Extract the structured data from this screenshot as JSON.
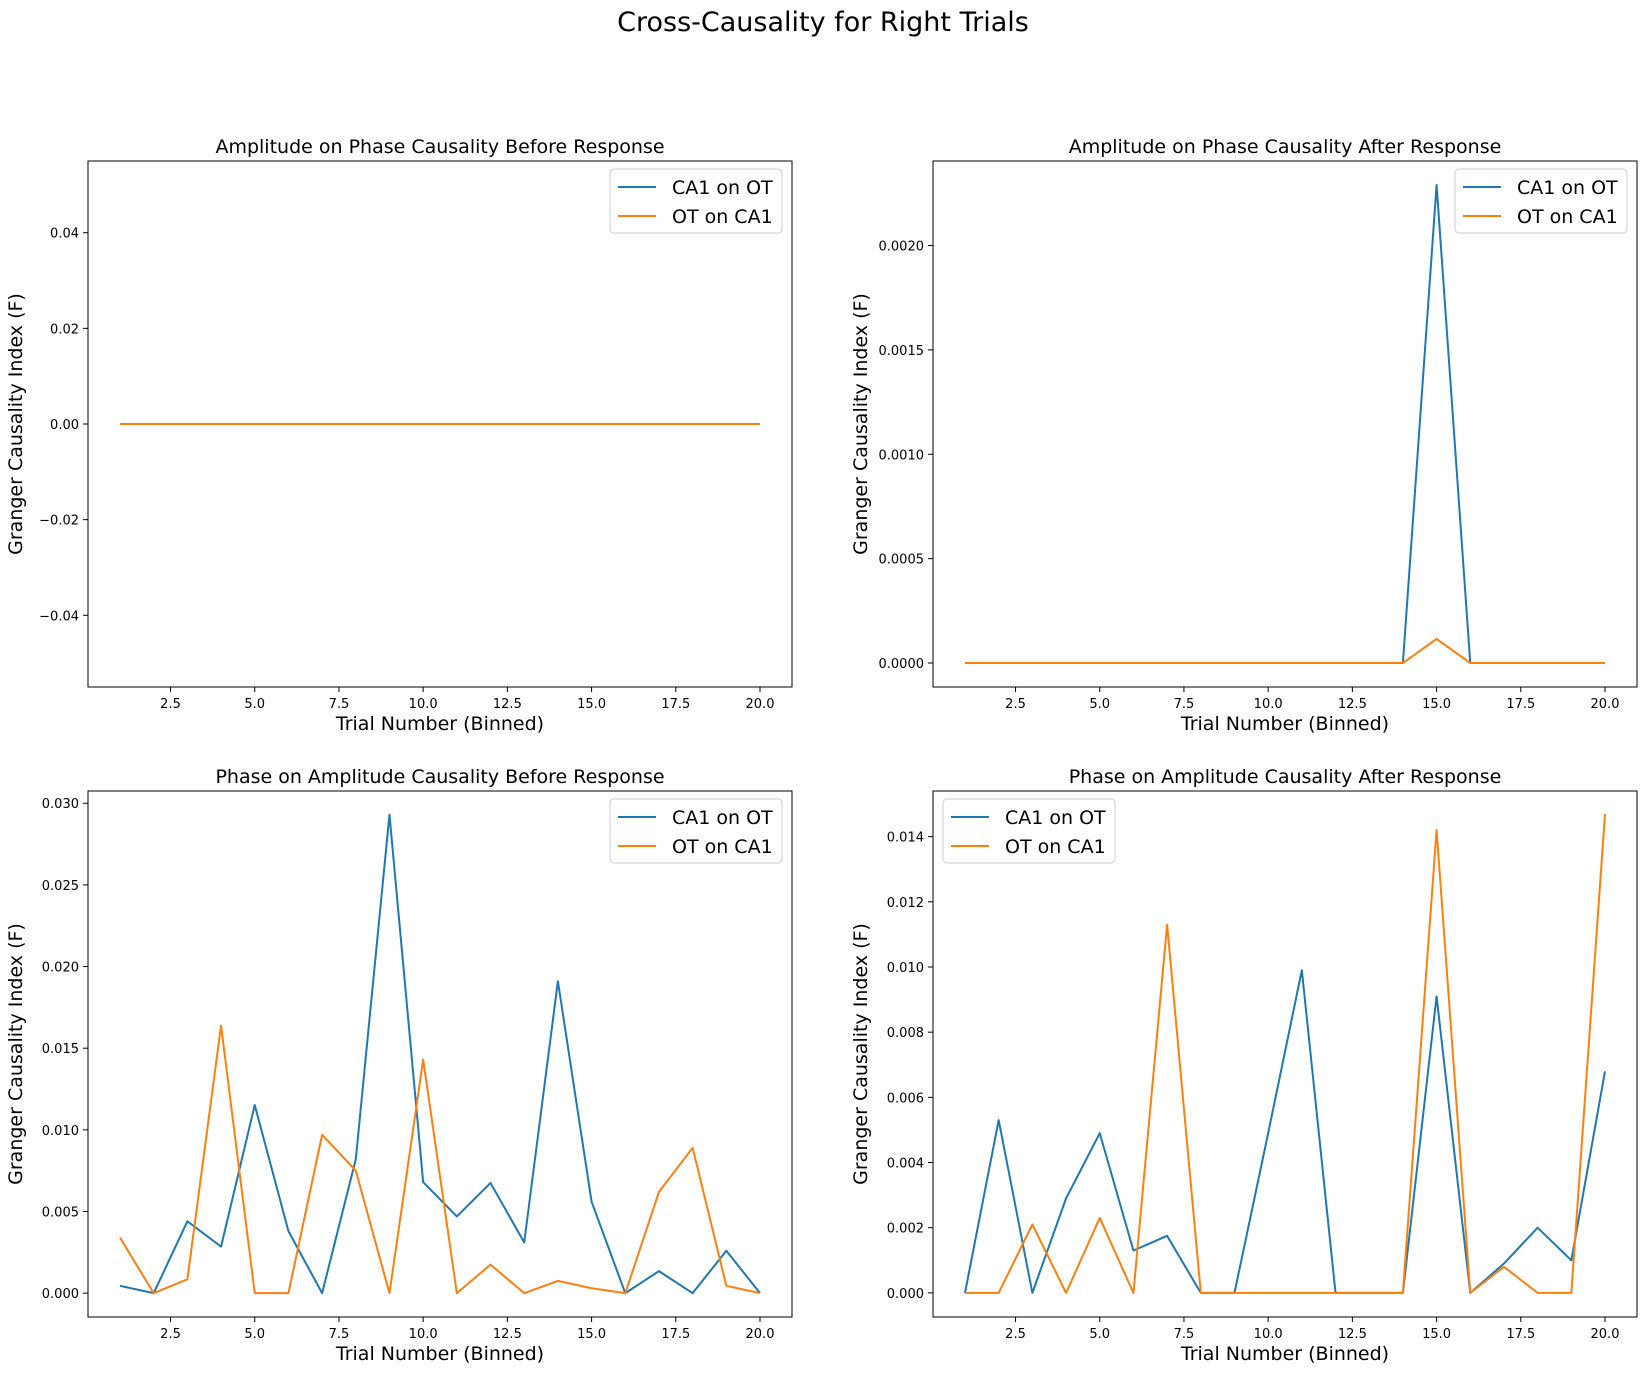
{
  "figure": {
    "suptitle": "Cross-Causality for Right Trials"
  },
  "chart_data": [
    {
      "type": "line",
      "title": "Amplitude on Phase Causality Before Response",
      "xlabel": "Trial Number (Binned)",
      "ylabel": "Granger Causality Index (F)",
      "x": [
        1,
        2,
        3,
        4,
        5,
        6,
        7,
        8,
        9,
        10,
        11,
        12,
        13,
        14,
        15,
        16,
        17,
        18,
        19,
        20
      ],
      "xlim": [
        0.05,
        20.95
      ],
      "ylim": [
        -0.055,
        0.055
      ],
      "xticks": [
        2.5,
        5.0,
        7.5,
        10.0,
        12.5,
        15.0,
        17.5,
        20.0
      ],
      "xtick_labels": [
        "2.5",
        "5.0",
        "7.5",
        "10.0",
        "12.5",
        "15.0",
        "17.5",
        "20.0"
      ],
      "yticks": [
        -0.04,
        -0.02,
        0.0,
        0.02,
        0.04
      ],
      "ytick_labels": [
        "−0.04",
        "−0.02",
        "0.00",
        "0.02",
        "0.04"
      ],
      "legend_position": "upper right",
      "series": [
        {
          "name": "CA1 on OT",
          "color": "#1f77b4",
          "values": [
            0,
            0,
            0,
            0,
            0,
            0,
            0,
            0,
            0,
            0,
            0,
            0,
            0,
            0,
            0,
            0,
            0,
            0,
            0,
            0
          ]
        },
        {
          "name": "OT on CA1",
          "color": "#ff7f0e",
          "values": [
            0,
            0,
            0,
            0,
            0,
            0,
            0,
            0,
            0,
            0,
            0,
            0,
            0,
            0,
            0,
            0,
            0,
            0,
            0,
            0
          ]
        }
      ]
    },
    {
      "type": "line",
      "title": "Amplitude on Phase Causality After Response",
      "xlabel": "Trial Number (Binned)",
      "ylabel": "Granger Causality Index (F)",
      "x": [
        1,
        2,
        3,
        4,
        5,
        6,
        7,
        8,
        9,
        10,
        11,
        12,
        13,
        14,
        15,
        16,
        17,
        18,
        19,
        20
      ],
      "xlim": [
        0.05,
        20.95
      ],
      "ylim": [
        -0.000115,
        0.002405
      ],
      "xticks": [
        2.5,
        5.0,
        7.5,
        10.0,
        12.5,
        15.0,
        17.5,
        20.0
      ],
      "xtick_labels": [
        "2.5",
        "5.0",
        "7.5",
        "10.0",
        "12.5",
        "15.0",
        "17.5",
        "20.0"
      ],
      "yticks": [
        0.0,
        0.0005,
        0.001,
        0.0015,
        0.002
      ],
      "ytick_labels": [
        "0.0000",
        "0.0005",
        "0.0010",
        "0.0015",
        "0.0020"
      ],
      "legend_position": "upper right",
      "series": [
        {
          "name": "CA1 on OT",
          "color": "#1f77b4",
          "values": [
            0,
            0,
            0,
            0,
            0,
            0,
            0,
            0,
            0,
            0,
            0,
            0,
            0,
            0,
            0.00229,
            0,
            0,
            0,
            0,
            0
          ]
        },
        {
          "name": "OT on CA1",
          "color": "#ff7f0e",
          "values": [
            0,
            0,
            0,
            0,
            0,
            0,
            0,
            0,
            0,
            0,
            0,
            0,
            0,
            0,
            0.000115,
            0,
            0,
            0,
            0,
            0
          ]
        }
      ]
    },
    {
      "type": "line",
      "title": "Phase on Amplitude Causality Before Response",
      "xlabel": "Trial Number (Binned)",
      "ylabel": "Granger Causality Index (F)",
      "x": [
        1,
        2,
        3,
        4,
        5,
        6,
        7,
        8,
        9,
        10,
        11,
        12,
        13,
        14,
        15,
        16,
        17,
        18,
        19,
        20
      ],
      "xlim": [
        0.05,
        20.95
      ],
      "ylim": [
        -0.00146,
        0.03075
      ],
      "xticks": [
        2.5,
        5.0,
        7.5,
        10.0,
        12.5,
        15.0,
        17.5,
        20.0
      ],
      "xtick_labels": [
        "2.5",
        "5.0",
        "7.5",
        "10.0",
        "12.5",
        "15.0",
        "17.5",
        "20.0"
      ],
      "yticks": [
        0.0,
        0.005,
        0.01,
        0.015,
        0.02,
        0.025,
        0.03
      ],
      "ytick_labels": [
        "0.000",
        "0.005",
        "0.010",
        "0.015",
        "0.020",
        "0.025",
        "0.030"
      ],
      "legend_position": "upper right",
      "series": [
        {
          "name": "CA1 on OT",
          "color": "#1f77b4",
          "values": [
            0.00045,
            0,
            0.0044,
            0.00285,
            0.01152,
            0.0038,
            0,
            0.0082,
            0.0293,
            0.0068,
            0.0047,
            0.00675,
            0.0031,
            0.0191,
            0.0056,
            0,
            0.00135,
            0,
            0.0026,
            0
          ]
        },
        {
          "name": "OT on CA1",
          "color": "#ff7f0e",
          "values": [
            0.0034,
            0,
            0.00085,
            0.01638,
            0,
            0,
            0.0097,
            0.0075,
            0,
            0.0143,
            0,
            0.00175,
            0,
            0.00075,
            0.0003,
            0,
            0.0062,
            0.0089,
            0.00045,
            0
          ]
        }
      ]
    },
    {
      "type": "line",
      "title": "Phase on Amplitude Causality After Response",
      "xlabel": "Trial Number (Binned)",
      "ylabel": "Granger Causality Index (F)",
      "x": [
        1,
        2,
        3,
        4,
        5,
        6,
        7,
        8,
        9,
        10,
        11,
        12,
        13,
        14,
        15,
        16,
        17,
        18,
        19,
        20
      ],
      "xlim": [
        0.05,
        20.95
      ],
      "ylim": [
        -0.00074,
        0.0154
      ],
      "xticks": [
        2.5,
        5.0,
        7.5,
        10.0,
        12.5,
        15.0,
        17.5,
        20.0
      ],
      "xtick_labels": [
        "2.5",
        "5.0",
        "7.5",
        "10.0",
        "12.5",
        "15.0",
        "17.5",
        "20.0"
      ],
      "yticks": [
        0.0,
        0.002,
        0.004,
        0.006,
        0.008,
        0.01,
        0.012,
        0.014
      ],
      "ytick_labels": [
        "0.000",
        "0.002",
        "0.004",
        "0.006",
        "0.008",
        "0.010",
        "0.012",
        "0.014"
      ],
      "legend_position": "upper left",
      "series": [
        {
          "name": "CA1 on OT",
          "color": "#1f77b4",
          "values": [
            0,
            0.0053,
            0,
            0.0029,
            0.0049,
            0.0013,
            0.00175,
            0,
            0,
            0.0049,
            0.0099,
            0,
            0,
            0,
            0.0091,
            0,
            0.0009,
            0.002,
            0.001,
            0.0068
          ]
        },
        {
          "name": "OT on CA1",
          "color": "#ff7f0e",
          "values": [
            0,
            0,
            0.0021,
            0,
            0.0023,
            0,
            0.0113,
            0,
            0,
            0,
            0,
            0,
            0,
            0,
            0.0142,
            0,
            0.0008,
            0,
            0,
            0.0147
          ]
        }
      ]
    }
  ]
}
